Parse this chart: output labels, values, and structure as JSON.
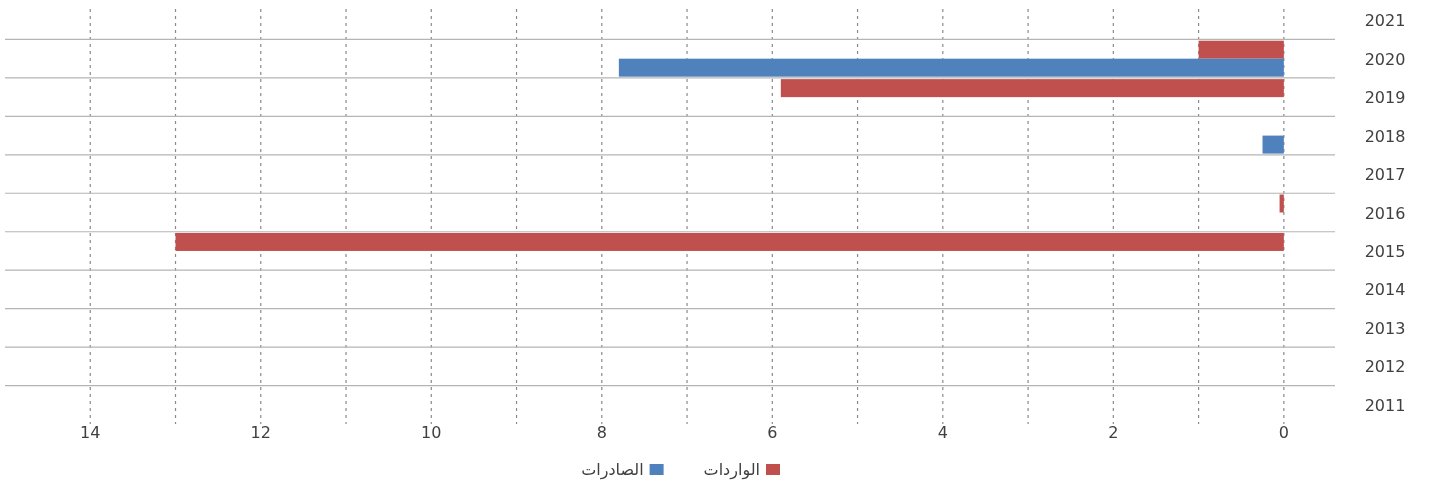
{
  "chart_data": {
    "type": "bar",
    "orientation": "horizontal",
    "categories": [
      "2021",
      "2020",
      "2019",
      "2018",
      "2017",
      "2016",
      "2015",
      "2014",
      "2013",
      "2012",
      "2011"
    ],
    "series": [
      {
        "name": "الواردات",
        "color": "#c0504d",
        "values": [
          null,
          1,
          5.9,
          null,
          null,
          0.05,
          13,
          null,
          null,
          null,
          null
        ]
      },
      {
        "name": "الصادرات",
        "color": "#4f81bd",
        "values": [
          null,
          7.8,
          null,
          0.25,
          null,
          null,
          null,
          null,
          null,
          null,
          null
        ]
      }
    ],
    "xlim": [
      15,
      -0.6
    ],
    "xticks": [
      0,
      {
        "value": 1,
        "label": null
      },
      2,
      {
        "value": 3,
        "label": null
      },
      4,
      {
        "value": 5,
        "label": null
      },
      6,
      {
        "value": 7,
        "label": null
      },
      8,
      {
        "value": 9,
        "label": null
      },
      10,
      {
        "value": 11,
        "label": null
      },
      12,
      {
        "value": 13,
        "label": null
      },
      14
    ],
    "grid": true,
    "legend": "bottom"
  }
}
